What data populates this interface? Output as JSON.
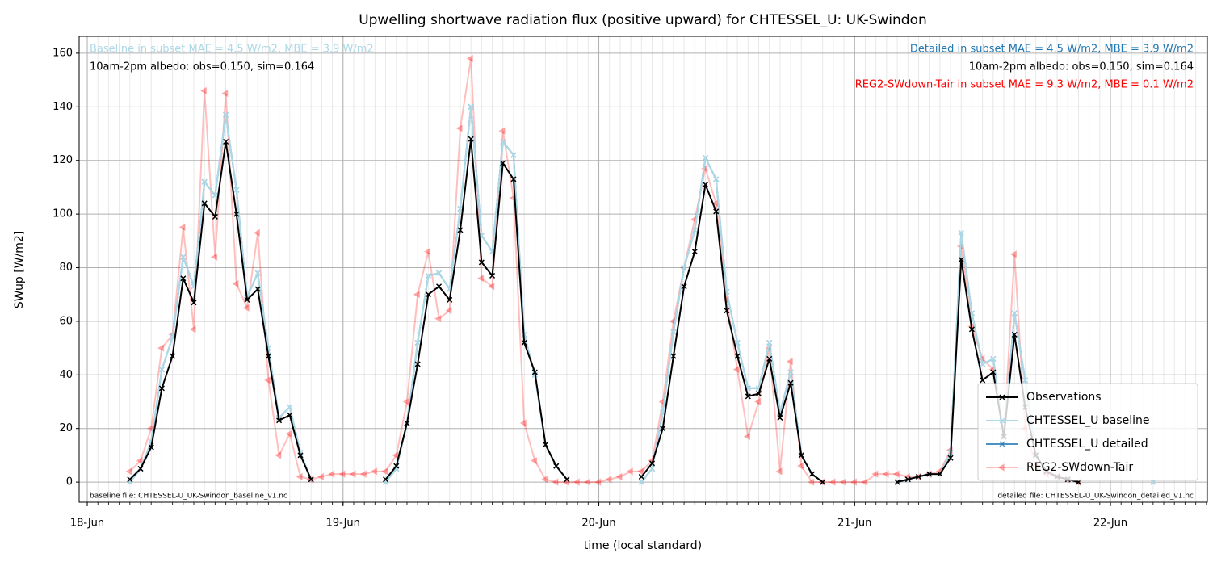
{
  "chart_data": {
    "type": "line",
    "title": "Upwelling shortwave radiation flux (positive upward) for CHTESSEL_U: UK-Swindon",
    "x_label": "time (local standard)",
    "y_label": "SWup [W/m2]",
    "x": [
      0,
      1,
      2,
      3,
      4,
      5,
      6,
      7,
      8,
      9,
      10,
      11,
      12,
      13,
      14,
      15,
      16,
      17,
      18,
      19,
      20,
      21,
      22,
      23,
      24,
      25,
      26,
      27,
      28,
      29,
      30,
      31,
      32,
      33,
      34,
      35,
      36,
      37,
      38,
      39,
      40,
      41,
      42,
      43,
      44,
      45,
      46,
      47,
      48,
      49,
      50,
      51,
      52,
      53,
      54,
      55,
      56,
      57,
      58,
      59,
      60,
      61,
      62,
      63,
      64,
      65,
      66,
      67,
      68,
      69,
      70,
      71,
      72,
      73,
      74,
      75,
      76,
      77,
      78,
      79,
      80,
      81,
      82,
      83,
      84,
      85,
      86,
      87,
      88,
      89,
      90,
      91,
      92,
      93,
      94,
      95,
      96,
      97,
      98,
      99,
      100,
      101,
      102,
      103,
      104
    ],
    "xlim": [
      -0.76,
      105.09
    ],
    "xticks": [
      {
        "value": 0,
        "label": "18-Jun"
      },
      {
        "value": 24,
        "label": "19-Jun"
      },
      {
        "value": 48,
        "label": "20-Jun"
      },
      {
        "value": 72,
        "label": "21-Jun"
      },
      {
        "value": 96,
        "label": "22-Jun"
      }
    ],
    "ylim": [
      -7.5,
      166.3
    ],
    "yticks": [
      0,
      20,
      40,
      60,
      80,
      100,
      120,
      140,
      160
    ],
    "grid": true,
    "minor_grid": true,
    "legend": "lower right",
    "series": [
      {
        "name": "Observations",
        "color": "#000000",
        "alpha": 1,
        "marker": "x",
        "values": [
          null,
          null,
          null,
          null,
          1,
          5,
          13,
          35,
          47,
          76,
          67,
          104,
          99,
          127,
          100,
          68,
          72,
          47,
          23,
          25,
          10,
          1,
          null,
          null,
          null,
          null,
          null,
          null,
          1,
          6,
          22,
          44,
          70,
          73,
          68,
          94,
          128,
          82,
          77,
          119,
          113,
          52,
          41,
          14,
          6,
          1,
          null,
          null,
          null,
          null,
          null,
          null,
          2,
          7,
          20,
          47,
          73,
          86,
          111,
          101,
          64,
          47,
          32,
          33,
          46,
          24,
          37,
          10,
          3,
          0,
          null,
          null,
          null,
          null,
          null,
          null,
          0,
          1,
          2,
          3,
          3,
          9,
          83,
          57,
          38,
          41,
          17,
          55,
          28,
          10,
          4,
          2,
          1,
          0,
          null,
          null,
          null,
          null,
          null,
          null,
          null,
          null,
          null,
          null,
          null
        ]
      },
      {
        "name": "CHTESSEL_U baseline",
        "color": "#add8e6",
        "alpha": 1,
        "marker": "x",
        "values": [
          null,
          null,
          null,
          null,
          0,
          5,
          15,
          42,
          54,
          84,
          73,
          112,
          107,
          137,
          109,
          69,
          78,
          50,
          24,
          28,
          11,
          1,
          null,
          null,
          null,
          null,
          null,
          null,
          0,
          5,
          22,
          52,
          77,
          78,
          72,
          102,
          140,
          92,
          86,
          127,
          122,
          55,
          40,
          14,
          6,
          1,
          null,
          null,
          null,
          null,
          null,
          null,
          0,
          5,
          26,
          56,
          80,
          94,
          121,
          113,
          71,
          52,
          35,
          35,
          52,
          26,
          41,
          10,
          3,
          0,
          null,
          null,
          null,
          null,
          null,
          null,
          0,
          1,
          2,
          3,
          3,
          11,
          93,
          63,
          44,
          46,
          17,
          63,
          38,
          10,
          4,
          2,
          1,
          0,
          null,
          null,
          null,
          null,
          null,
          null,
          0,
          null,
          null,
          null,
          null
        ]
      },
      {
        "name": "CHTESSEL_U detailed",
        "color": "#1f77b4",
        "alpha": 0.8,
        "marker": "x",
        "values": [
          null,
          null,
          null,
          null,
          0,
          5,
          15,
          42,
          54,
          84,
          73,
          112,
          107,
          137,
          109,
          69,
          78,
          50,
          24,
          28,
          11,
          1,
          null,
          null,
          null,
          null,
          null,
          null,
          0,
          5,
          22,
          52,
          77,
          78,
          72,
          102,
          140,
          92,
          86,
          127,
          122,
          55,
          40,
          14,
          6,
          1,
          null,
          null,
          null,
          null,
          null,
          null,
          0,
          5,
          26,
          56,
          80,
          94,
          121,
          113,
          71,
          52,
          35,
          35,
          52,
          26,
          41,
          10,
          3,
          0,
          null,
          null,
          null,
          null,
          null,
          null,
          0,
          1,
          2,
          3,
          3,
          11,
          93,
          63,
          44,
          46,
          17,
          63,
          38,
          10,
          4,
          2,
          1,
          0,
          null,
          null,
          null,
          null,
          null,
          null,
          0,
          null,
          null,
          null,
          null
        ]
      },
      {
        "name": "REG2-SWdown-Tair",
        "color": "#ff0000",
        "alpha": 0.25,
        "marker": "tri",
        "values": [
          null,
          null,
          null,
          null,
          4,
          8,
          20,
          50,
          55,
          95,
          57,
          146,
          84,
          145,
          74,
          65,
          93,
          38,
          10,
          18,
          2,
          1,
          2,
          3,
          3,
          3,
          3,
          4,
          4,
          10,
          30,
          70,
          86,
          61,
          64,
          132,
          158,
          76,
          73,
          131,
          106,
          22,
          8,
          1,
          0,
          0,
          0,
          0,
          0,
          1,
          2,
          4,
          4,
          8,
          30,
          60,
          80,
          98,
          117,
          104,
          68,
          42,
          17,
          30,
          50,
          4,
          45,
          6,
          0,
          0,
          0,
          0,
          0,
          0,
          3,
          3,
          3,
          2,
          2,
          3,
          4,
          12,
          88,
          58,
          46,
          42,
          17,
          85,
          20,
          6,
          3,
          2,
          1,
          0,
          null,
          null,
          null,
          null,
          null,
          null,
          null,
          null,
          null,
          null,
          null
        ]
      }
    ],
    "annotations": {
      "top_left": [
        {
          "text": "Baseline in subset MAE = 4.5 W/m2, MBE = 3.9 W/m2",
          "color": "#add8e6"
        },
        {
          "text": "10am-2pm albedo: obs=0.150, sim=0.164",
          "color": "#000000"
        }
      ],
      "top_right": [
        {
          "text": "Detailed in subset MAE = 4.5 W/m2, MBE = 3.9 W/m2",
          "color": "#1f77b4"
        },
        {
          "text": "10am-2pm albedo: obs=0.150, sim=0.164",
          "color": "#000000"
        },
        {
          "text": "REG2-SWdown-Tair in subset MAE = 9.3 W/m2, MBE = 0.1 W/m2",
          "color": "#ff0000"
        }
      ],
      "bottom_left": "baseline file: CHTESSEL-U_UK-Swindon_baseline_v1.nc",
      "bottom_right": "detailed file: CHTESSEL-U_UK-Swindon_detailed_v1.nc"
    }
  }
}
